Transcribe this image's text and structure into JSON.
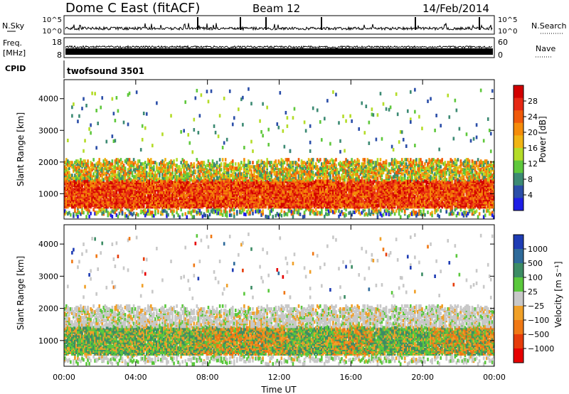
{
  "header": {
    "title": "Dome C East (fitACF)",
    "beam": "Beam 12",
    "date": "14/Feb/2014"
  },
  "status_panels": {
    "nsky_label": "N.Sky",
    "nsky_ticks": [
      "10^5",
      "10^0"
    ],
    "nsearch_label": "N.Search",
    "nsearch_ticks": [
      "10^5",
      "10^0"
    ],
    "freq_label": "Freq.",
    "freq_unit": "[MHz]",
    "freq_ticks": [
      "18",
      "8"
    ],
    "nave_label": "Nave",
    "nave_ticks": [
      "60",
      "0"
    ],
    "cpid_label": "CPID",
    "cpid_value": "twofsound 3501"
  },
  "chart_data": [
    {
      "type": "heatmap",
      "name": "power",
      "ylabel": "Slant Range [km]",
      "yticks": [
        "1000",
        "2000",
        "3000",
        "4000"
      ],
      "ylim": [
        200,
        4600
      ],
      "xticks": [
        "00:00",
        "04:00",
        "08:00",
        "12:00",
        "16:00",
        "20:00",
        "00:00"
      ],
      "colorbar_label": "Power [dB]",
      "colorbar_ticks": [
        "4",
        "8",
        "12",
        "16",
        "20",
        "24",
        "28"
      ],
      "colorbar_range": [
        0,
        32
      ],
      "colors": [
        "#1e1ee6",
        "#2b4ea8",
        "#3c8a73",
        "#5fc83c",
        "#b4dc28",
        "#f0b414",
        "#f58c0a",
        "#f05a0a",
        "#e62814",
        "#d20000"
      ]
    },
    {
      "type": "heatmap",
      "name": "velocity",
      "ylabel": "Slant Range [km]",
      "yticks": [
        "1000",
        "2000",
        "3000",
        "4000"
      ],
      "ylim": [
        200,
        4600
      ],
      "xticks": [
        "00:00",
        "04:00",
        "08:00",
        "12:00",
        "16:00",
        "20:00",
        "00:00"
      ],
      "xlabel": "Time UT",
      "colorbar_label": "Velocity [m s⁻¹]",
      "colorbar_ticks": [
        "1000",
        "500",
        "100",
        "25",
        "−25",
        "−100",
        "−500",
        "−1000"
      ],
      "colors": [
        "#1e3cb4",
        "#2e6a9a",
        "#3c8c64",
        "#5ac83c",
        "#c8c8c8",
        "#f0a028",
        "#f07814",
        "#e63c0a",
        "#e60000"
      ]
    }
  ]
}
